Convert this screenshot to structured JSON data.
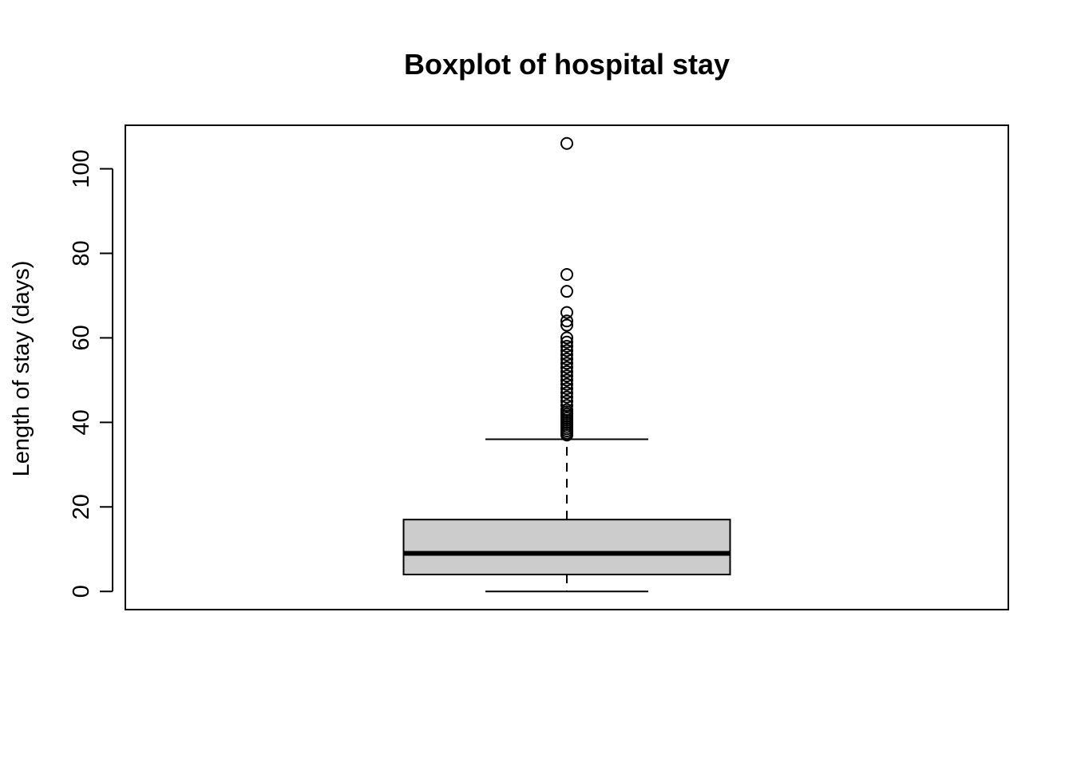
{
  "chart_data": {
    "type": "boxplot",
    "title": "Boxplot of hospital stay",
    "xlabel": "",
    "ylabel": "Length of stay (days)",
    "ylim": [
      -4.3,
      110.3
    ],
    "yticks": [
      0,
      20,
      40,
      60,
      80,
      100
    ],
    "ytick_labels": [
      "0",
      "20",
      "40",
      "60",
      "80",
      "100"
    ],
    "grid": false,
    "legend": "none",
    "box": {
      "whisker_low": 0,
      "q1": 4,
      "median": 9,
      "q3": 17,
      "whisker_high": 36,
      "outliers": [
        37,
        37.5,
        38,
        38.5,
        39,
        39.5,
        40,
        40.5,
        41,
        41.5,
        42,
        42.5,
        43,
        44,
        45,
        46,
        47,
        48,
        49,
        50,
        51,
        52,
        53,
        54,
        55,
        56,
        57,
        58,
        59,
        60,
        63,
        64,
        66,
        71,
        75,
        106
      ]
    },
    "colors": {
      "box_fill": "#cccccc",
      "stroke": "#000000"
    }
  }
}
